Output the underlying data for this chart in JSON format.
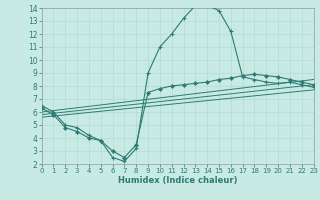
{
  "xlabel": "Humidex (Indice chaleur)",
  "xlim": [
    0,
    23
  ],
  "ylim": [
    2,
    14
  ],
  "xticks": [
    0,
    1,
    2,
    3,
    4,
    5,
    6,
    7,
    8,
    9,
    10,
    11,
    12,
    13,
    14,
    15,
    16,
    17,
    18,
    19,
    20,
    21,
    22,
    23
  ],
  "yticks": [
    2,
    3,
    4,
    5,
    6,
    7,
    8,
    9,
    10,
    11,
    12,
    13,
    14
  ],
  "bg_color": "#c8eae4",
  "line_color": "#2e7b72",
  "grid_color": "#afd8d0",
  "line_plus": {
    "x": [
      0,
      1,
      2,
      3,
      4,
      5,
      6,
      7,
      8,
      9,
      10,
      11,
      12,
      13,
      14,
      15,
      16,
      17,
      18,
      19,
      20,
      21,
      22,
      23
    ],
    "y": [
      6.5,
      6.0,
      5.0,
      4.8,
      4.2,
      3.8,
      2.5,
      2.2,
      3.2,
      9.0,
      11.0,
      12.0,
      13.2,
      14.2,
      14.2,
      13.8,
      12.2,
      8.7,
      8.5,
      8.3,
      8.2,
      8.3,
      8.1,
      7.9
    ]
  },
  "line_diamond": {
    "x": [
      0,
      1,
      2,
      3,
      4,
      5,
      6,
      7,
      8,
      9,
      10,
      11,
      12,
      13,
      14,
      15,
      16,
      17,
      18,
      19,
      20,
      21,
      22,
      23
    ],
    "y": [
      6.3,
      5.8,
      4.8,
      4.5,
      4.0,
      3.8,
      3.0,
      2.5,
      3.5,
      7.5,
      7.8,
      8.0,
      8.1,
      8.2,
      8.3,
      8.5,
      8.6,
      8.8,
      8.9,
      8.8,
      8.7,
      8.5,
      8.3,
      8.1
    ]
  },
  "line_thin1": {
    "x": [
      0,
      23
    ],
    "y": [
      6.0,
      8.5
    ]
  },
  "line_thin2": {
    "x": [
      0,
      23
    ],
    "y": [
      5.8,
      8.1
    ]
  },
  "line_thin3": {
    "x": [
      0,
      23
    ],
    "y": [
      5.6,
      7.7
    ]
  }
}
